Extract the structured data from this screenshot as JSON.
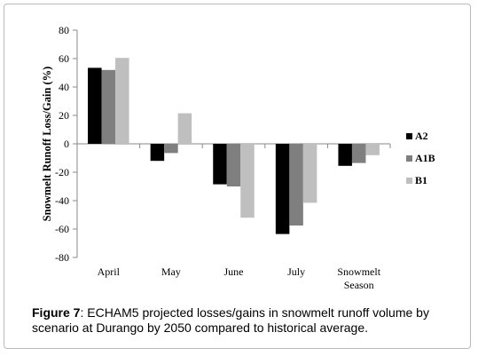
{
  "chart_data": {
    "type": "bar",
    "categories": [
      "April",
      "May",
      "June",
      "July",
      "Snowmelt\nSeason"
    ],
    "series": [
      {
        "name": "A2",
        "values": [
          53.5,
          -12,
          -28.5,
          -63.5,
          -15.5
        ]
      },
      {
        "name": "A1B",
        "values": [
          52,
          -6.5,
          -30,
          -57.5,
          -13.5
        ]
      },
      {
        "name": "B1",
        "values": [
          60.5,
          21.5,
          -52,
          -41.5,
          -8
        ]
      }
    ],
    "ylabel": "Snowmelt Runoff  Loss/Gain (%)",
    "ylim": [
      -80,
      80
    ],
    "yticks": [
      80,
      60,
      40,
      20,
      0,
      -20,
      -40,
      -60,
      -80
    ],
    "legend_position": "right",
    "grid": false,
    "colors": {
      "A2": "#000000",
      "A1B": "#7f7f7f",
      "B1": "#bfbfbf",
      "axis": "#888888"
    }
  },
  "caption": {
    "label": "Figure 7",
    "text": ": ECHAM5 projected losses/gains in snowmelt runoff volume by scenario at Durango by 2050 compared to historical average."
  }
}
